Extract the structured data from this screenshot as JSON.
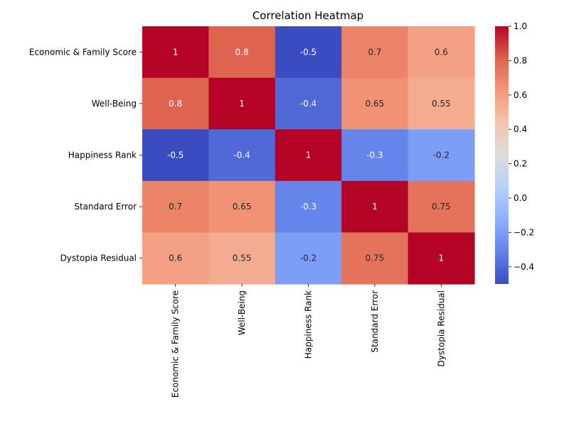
{
  "chart_data": {
    "type": "heatmap",
    "title": "Correlation Heatmap",
    "xlabel": "",
    "ylabel": "",
    "x_categories": [
      "Economic & Family Score",
      "Well-Being",
      "Happiness Rank",
      "Standard Error",
      "Dystopia Residual"
    ],
    "y_categories": [
      "Economic & Family Score",
      "Well-Being",
      "Happiness Rank",
      "Standard Error",
      "Dystopia Residual"
    ],
    "values": [
      [
        1,
        0.8,
        -0.5,
        0.7,
        0.6
      ],
      [
        0.8,
        1,
        -0.4,
        0.65,
        0.55
      ],
      [
        -0.5,
        -0.4,
        1,
        -0.3,
        -0.2
      ],
      [
        0.7,
        0.65,
        -0.3,
        1,
        0.75
      ],
      [
        0.6,
        0.55,
        -0.2,
        0.75,
        1
      ]
    ],
    "value_labels": [
      [
        "1",
        "0.8",
        "-0.5",
        "0.7",
        "0.6"
      ],
      [
        "0.8",
        "1",
        "-0.4",
        "0.65",
        "0.55"
      ],
      [
        "-0.5",
        "-0.4",
        "1",
        "-0.3",
        "-0.2"
      ],
      [
        "0.7",
        "0.65",
        "-0.3",
        "1",
        "0.75"
      ],
      [
        "0.6",
        "0.55",
        "-0.2",
        "0.75",
        "1"
      ]
    ],
    "colormap": "coolwarm",
    "vmin": -0.5,
    "vmax": 1.0,
    "colorbar_ticks": [
      1.0,
      0.8,
      0.6,
      0.4,
      0.2,
      0.0,
      -0.2,
      -0.4
    ],
    "colorbar_tick_labels": [
      "1.0",
      "0.8",
      "0.6",
      "0.4",
      "0.2",
      "0.0",
      "−0.2",
      "−0.4"
    ],
    "legend": "colorbar-right"
  }
}
